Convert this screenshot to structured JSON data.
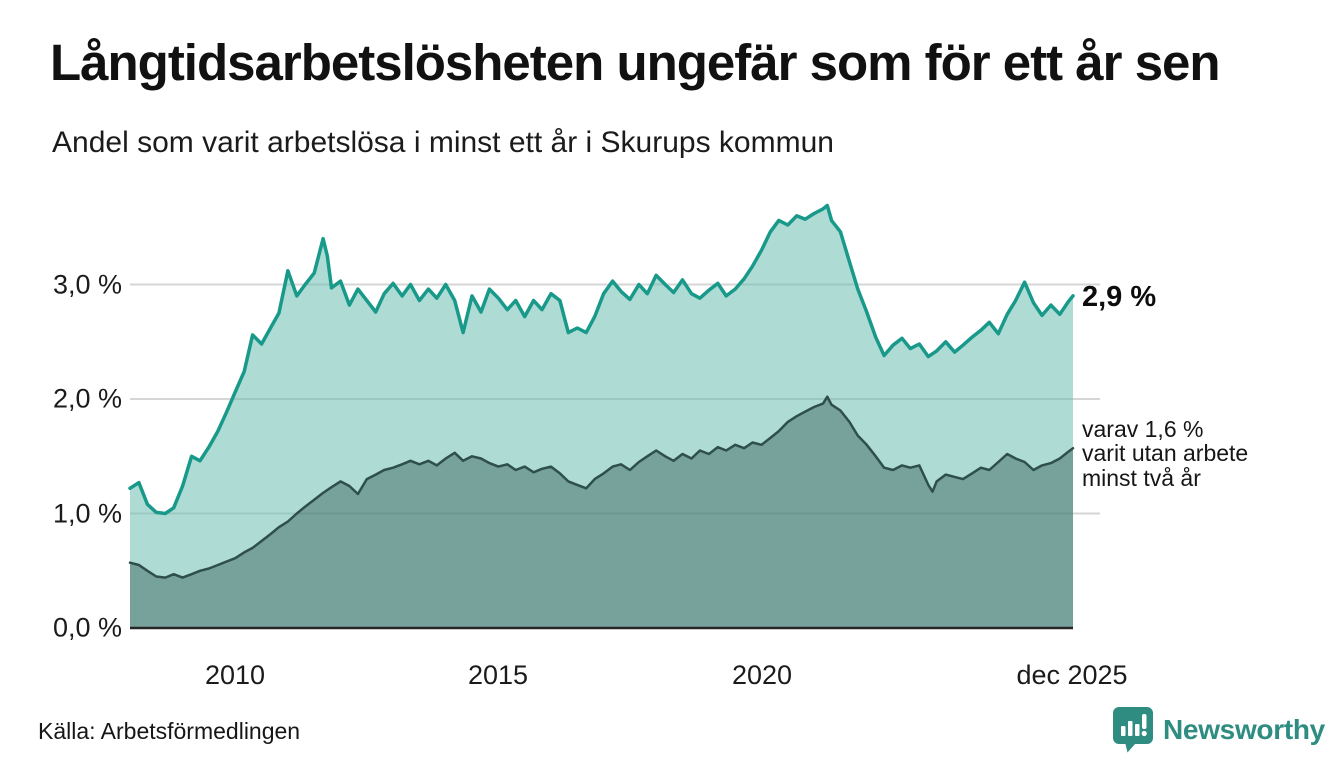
{
  "header": {
    "title": "Långtidsarbetslösheten ungefär som för ett år sen",
    "subtitle": "Andel som varit arbetslösa i minst ett år i Skurups kommun"
  },
  "footer": {
    "source": "Källa: Arbetsförmedlingen",
    "brand": "Newsworthy"
  },
  "icons": {
    "brand_icon": "newsworthy-speech-bubble-bar-chart-icon"
  },
  "colors": {
    "accent_teal": "#18998a",
    "fill_light_teal": "rgba(109,190,178,0.55)",
    "dark_line": "#2e4f4a",
    "fill_dark": "rgba(43,84,78,0.42)",
    "grid": "#d6d6d6",
    "axis": "#262626",
    "brand_teal": "#2e8c80",
    "text": "#111111"
  },
  "chart_data": {
    "type": "area",
    "title": "Långtidsarbetslösheten ungefär som för ett år sen",
    "subtitle": "Andel som varit arbetslösa i minst ett år i Skurups kommun",
    "grid": true,
    "legend_position": "right-edge-annotations",
    "x_axis": {
      "range_years": [
        2008.0,
        2025.92
      ],
      "ticks": [
        {
          "label": "2010",
          "year": 2010
        },
        {
          "label": "2015",
          "year": 2015
        },
        {
          "label": "2020",
          "year": 2020
        },
        {
          "label": "dec 2025",
          "year": 2025.92
        }
      ]
    },
    "y_axis": {
      "unit": "%",
      "range": [
        0,
        3.9
      ],
      "tick_labels": [
        "3,0 %",
        "2,0 %",
        "1,0 %",
        "0,0 %"
      ],
      "tick_values": [
        3.0,
        2.0,
        1.0,
        0.0
      ],
      "gridline_values": [
        1.0,
        2.0,
        3.0
      ]
    },
    "series": [
      {
        "name": "Andel arbetslösa minst ett år",
        "end_label": "2,9 %",
        "end_value": 2.9,
        "line_color": "#18998a",
        "fill_color": "rgba(109,190,178,0.55)",
        "line_width": 3.5,
        "points": [
          [
            2008.0,
            1.22
          ],
          [
            2008.17,
            1.27
          ],
          [
            2008.33,
            1.08
          ],
          [
            2008.5,
            1.01
          ],
          [
            2008.67,
            1.0
          ],
          [
            2008.83,
            1.05
          ],
          [
            2009.0,
            1.24
          ],
          [
            2009.17,
            1.5
          ],
          [
            2009.33,
            1.46
          ],
          [
            2009.5,
            1.58
          ],
          [
            2009.67,
            1.72
          ],
          [
            2009.83,
            1.88
          ],
          [
            2010.0,
            2.06
          ],
          [
            2010.17,
            2.24
          ],
          [
            2010.33,
            2.56
          ],
          [
            2010.5,
            2.48
          ],
          [
            2010.67,
            2.62
          ],
          [
            2010.83,
            2.75
          ],
          [
            2011.0,
            3.12
          ],
          [
            2011.17,
            2.9
          ],
          [
            2011.33,
            3.0
          ],
          [
            2011.5,
            3.1
          ],
          [
            2011.67,
            3.4
          ],
          [
            2011.75,
            3.25
          ],
          [
            2011.83,
            2.97
          ],
          [
            2012.0,
            3.03
          ],
          [
            2012.17,
            2.82
          ],
          [
            2012.33,
            2.96
          ],
          [
            2012.5,
            2.86
          ],
          [
            2012.67,
            2.76
          ],
          [
            2012.83,
            2.92
          ],
          [
            2013.0,
            3.01
          ],
          [
            2013.17,
            2.9
          ],
          [
            2013.33,
            3.0
          ],
          [
            2013.5,
            2.86
          ],
          [
            2013.67,
            2.96
          ],
          [
            2013.83,
            2.88
          ],
          [
            2014.0,
            3.0
          ],
          [
            2014.17,
            2.86
          ],
          [
            2014.33,
            2.58
          ],
          [
            2014.5,
            2.9
          ],
          [
            2014.67,
            2.76
          ],
          [
            2014.83,
            2.96
          ],
          [
            2015.0,
            2.88
          ],
          [
            2015.17,
            2.78
          ],
          [
            2015.33,
            2.86
          ],
          [
            2015.5,
            2.72
          ],
          [
            2015.67,
            2.86
          ],
          [
            2015.83,
            2.78
          ],
          [
            2016.0,
            2.92
          ],
          [
            2016.17,
            2.86
          ],
          [
            2016.33,
            2.58
          ],
          [
            2016.5,
            2.62
          ],
          [
            2016.67,
            2.58
          ],
          [
            2016.83,
            2.72
          ],
          [
            2017.0,
            2.92
          ],
          [
            2017.17,
            3.03
          ],
          [
            2017.33,
            2.94
          ],
          [
            2017.5,
            2.87
          ],
          [
            2017.67,
            3.0
          ],
          [
            2017.83,
            2.92
          ],
          [
            2018.0,
            3.08
          ],
          [
            2018.17,
            3.0
          ],
          [
            2018.33,
            2.93
          ],
          [
            2018.5,
            3.04
          ],
          [
            2018.67,
            2.92
          ],
          [
            2018.83,
            2.88
          ],
          [
            2019.0,
            2.95
          ],
          [
            2019.17,
            3.01
          ],
          [
            2019.33,
            2.9
          ],
          [
            2019.5,
            2.96
          ],
          [
            2019.67,
            3.05
          ],
          [
            2019.83,
            3.16
          ],
          [
            2020.0,
            3.3
          ],
          [
            2020.17,
            3.46
          ],
          [
            2020.33,
            3.56
          ],
          [
            2020.5,
            3.52
          ],
          [
            2020.67,
            3.6
          ],
          [
            2020.83,
            3.57
          ],
          [
            2021.0,
            3.62
          ],
          [
            2021.17,
            3.66
          ],
          [
            2021.25,
            3.69
          ],
          [
            2021.33,
            3.56
          ],
          [
            2021.5,
            3.46
          ],
          [
            2021.67,
            3.2
          ],
          [
            2021.83,
            2.96
          ],
          [
            2022.0,
            2.76
          ],
          [
            2022.17,
            2.54
          ],
          [
            2022.33,
            2.38
          ],
          [
            2022.5,
            2.47
          ],
          [
            2022.67,
            2.53
          ],
          [
            2022.83,
            2.44
          ],
          [
            2023.0,
            2.48
          ],
          [
            2023.17,
            2.37
          ],
          [
            2023.33,
            2.42
          ],
          [
            2023.5,
            2.5
          ],
          [
            2023.67,
            2.41
          ],
          [
            2023.83,
            2.47
          ],
          [
            2024.0,
            2.54
          ],
          [
            2024.17,
            2.6
          ],
          [
            2024.33,
            2.67
          ],
          [
            2024.5,
            2.57
          ],
          [
            2024.67,
            2.74
          ],
          [
            2024.83,
            2.86
          ],
          [
            2025.0,
            3.02
          ],
          [
            2025.17,
            2.84
          ],
          [
            2025.33,
            2.73
          ],
          [
            2025.5,
            2.82
          ],
          [
            2025.67,
            2.74
          ],
          [
            2025.83,
            2.85
          ],
          [
            2025.92,
            2.9
          ]
        ]
      },
      {
        "name": "varav utan arbete minst två år",
        "end_value": 1.6,
        "note_lines": [
          "varav 1,6 %",
          "varit utan arbete",
          "minst två år"
        ],
        "line_color": "#2e4f4a",
        "fill_color": "rgba(43,84,78,0.42)",
        "line_width": 2.5,
        "points": [
          [
            2008.0,
            0.57
          ],
          [
            2008.17,
            0.55
          ],
          [
            2008.33,
            0.5
          ],
          [
            2008.5,
            0.45
          ],
          [
            2008.67,
            0.44
          ],
          [
            2008.83,
            0.47
          ],
          [
            2009.0,
            0.44
          ],
          [
            2009.17,
            0.47
          ],
          [
            2009.33,
            0.5
          ],
          [
            2009.5,
            0.52
          ],
          [
            2009.67,
            0.55
          ],
          [
            2009.83,
            0.58
          ],
          [
            2010.0,
            0.61
          ],
          [
            2010.17,
            0.66
          ],
          [
            2010.33,
            0.7
          ],
          [
            2010.5,
            0.76
          ],
          [
            2010.67,
            0.82
          ],
          [
            2010.83,
            0.88
          ],
          [
            2011.0,
            0.93
          ],
          [
            2011.17,
            1.0
          ],
          [
            2011.33,
            1.06
          ],
          [
            2011.5,
            1.12
          ],
          [
            2011.67,
            1.18
          ],
          [
            2011.83,
            1.23
          ],
          [
            2012.0,
            1.28
          ],
          [
            2012.17,
            1.24
          ],
          [
            2012.33,
            1.17
          ],
          [
            2012.5,
            1.3
          ],
          [
            2012.67,
            1.34
          ],
          [
            2012.83,
            1.38
          ],
          [
            2013.0,
            1.4
          ],
          [
            2013.17,
            1.43
          ],
          [
            2013.33,
            1.46
          ],
          [
            2013.5,
            1.43
          ],
          [
            2013.67,
            1.46
          ],
          [
            2013.83,
            1.42
          ],
          [
            2014.0,
            1.48
          ],
          [
            2014.17,
            1.53
          ],
          [
            2014.33,
            1.46
          ],
          [
            2014.5,
            1.5
          ],
          [
            2014.67,
            1.48
          ],
          [
            2014.83,
            1.44
          ],
          [
            2015.0,
            1.41
          ],
          [
            2015.17,
            1.43
          ],
          [
            2015.33,
            1.38
          ],
          [
            2015.5,
            1.41
          ],
          [
            2015.67,
            1.36
          ],
          [
            2015.83,
            1.39
          ],
          [
            2016.0,
            1.41
          ],
          [
            2016.17,
            1.35
          ],
          [
            2016.33,
            1.28
          ],
          [
            2016.5,
            1.25
          ],
          [
            2016.67,
            1.22
          ],
          [
            2016.83,
            1.3
          ],
          [
            2017.0,
            1.35
          ],
          [
            2017.17,
            1.41
          ],
          [
            2017.33,
            1.43
          ],
          [
            2017.5,
            1.38
          ],
          [
            2017.67,
            1.45
          ],
          [
            2017.83,
            1.5
          ],
          [
            2018.0,
            1.55
          ],
          [
            2018.17,
            1.5
          ],
          [
            2018.33,
            1.46
          ],
          [
            2018.5,
            1.52
          ],
          [
            2018.67,
            1.48
          ],
          [
            2018.83,
            1.55
          ],
          [
            2019.0,
            1.52
          ],
          [
            2019.17,
            1.58
          ],
          [
            2019.33,
            1.55
          ],
          [
            2019.5,
            1.6
          ],
          [
            2019.67,
            1.57
          ],
          [
            2019.83,
            1.62
          ],
          [
            2020.0,
            1.6
          ],
          [
            2020.17,
            1.66
          ],
          [
            2020.33,
            1.72
          ],
          [
            2020.5,
            1.8
          ],
          [
            2020.67,
            1.85
          ],
          [
            2020.83,
            1.89
          ],
          [
            2021.0,
            1.93
          ],
          [
            2021.17,
            1.96
          ],
          [
            2021.25,
            2.02
          ],
          [
            2021.33,
            1.95
          ],
          [
            2021.5,
            1.9
          ],
          [
            2021.67,
            1.8
          ],
          [
            2021.83,
            1.68
          ],
          [
            2022.0,
            1.6
          ],
          [
            2022.17,
            1.5
          ],
          [
            2022.33,
            1.4
          ],
          [
            2022.5,
            1.38
          ],
          [
            2022.67,
            1.42
          ],
          [
            2022.83,
            1.4
          ],
          [
            2023.0,
            1.42
          ],
          [
            2023.17,
            1.25
          ],
          [
            2023.25,
            1.19
          ],
          [
            2023.33,
            1.28
          ],
          [
            2023.5,
            1.34
          ],
          [
            2023.67,
            1.32
          ],
          [
            2023.83,
            1.3
          ],
          [
            2024.0,
            1.35
          ],
          [
            2024.17,
            1.4
          ],
          [
            2024.33,
            1.38
          ],
          [
            2024.5,
            1.45
          ],
          [
            2024.67,
            1.52
          ],
          [
            2024.83,
            1.48
          ],
          [
            2025.0,
            1.45
          ],
          [
            2025.17,
            1.38
          ],
          [
            2025.33,
            1.42
          ],
          [
            2025.5,
            1.44
          ],
          [
            2025.67,
            1.48
          ],
          [
            2025.83,
            1.54
          ],
          [
            2025.92,
            1.57
          ]
        ]
      }
    ],
    "source": "Källa: Arbetsförmedlingen"
  }
}
